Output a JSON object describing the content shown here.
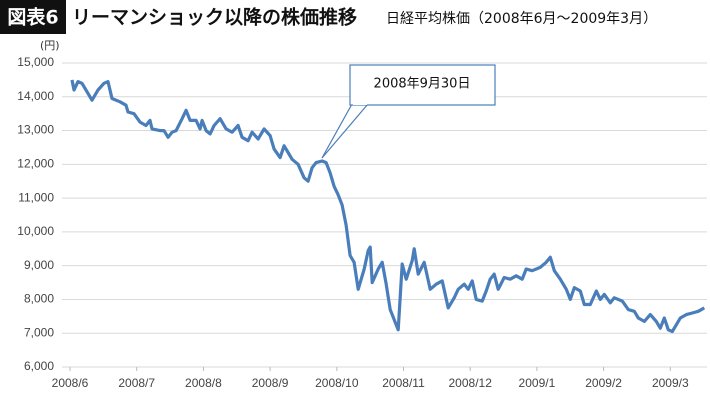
{
  "chart_data": {
    "type": "line",
    "badge": "図表6",
    "title": "リーマンショック以降の株価推移",
    "subtitle": "日経平均株価（2008年6月～2009年3月）",
    "y_unit": "(円)",
    "annotation": "2008年9月30日",
    "xlim": [
      0,
      9.55
    ],
    "xticks": [
      {
        "value": 0,
        "label": "2008/6"
      },
      {
        "value": 1,
        "label": "2008/7"
      },
      {
        "value": 2,
        "label": "2008/8"
      },
      {
        "value": 3,
        "label": "2008/9"
      },
      {
        "value": 4,
        "label": "2008/10"
      },
      {
        "value": 5,
        "label": "2008/11"
      },
      {
        "value": 6,
        "label": "2008/12"
      },
      {
        "value": 7,
        "label": "2009/1"
      },
      {
        "value": 8,
        "label": "2009/2"
      },
      {
        "value": 9,
        "label": "2009/3"
      }
    ],
    "ylim": [
      6000,
      15000
    ],
    "yticks": [
      {
        "value": 6000,
        "label": "6,000"
      },
      {
        "value": 7000,
        "label": "7,000"
      },
      {
        "value": 8000,
        "label": "8,000"
      },
      {
        "value": 9000,
        "label": "9,000"
      },
      {
        "value": 10000,
        "label": "10,000"
      },
      {
        "value": 11000,
        "label": "11,000"
      },
      {
        "value": 12000,
        "label": "12,000"
      },
      {
        "value": 13000,
        "label": "13,000"
      },
      {
        "value": 14000,
        "label": "14,000"
      },
      {
        "value": 15000,
        "label": "15,000"
      }
    ],
    "grid": true,
    "color": "#4a7ebb",
    "x": [
      0.03,
      0.06,
      0.12,
      0.18,
      0.27,
      0.33,
      0.42,
      0.51,
      0.57,
      0.63,
      0.75,
      0.84,
      0.87,
      0.96,
      1.05,
      1.14,
      1.2,
      1.23,
      1.35,
      1.41,
      1.47,
      1.53,
      1.59,
      1.68,
      1.74,
      1.8,
      1.89,
      1.95,
      1.98,
      2.04,
      2.1,
      2.16,
      2.25,
      2.34,
      2.43,
      2.52,
      2.58,
      2.67,
      2.73,
      2.82,
      2.91,
      3.0,
      3.06,
      3.15,
      3.21,
      3.27,
      3.33,
      3.42,
      3.51,
      3.57,
      3.63,
      3.69,
      3.78,
      3.84,
      3.9,
      3.96,
      4.02,
      4.08,
      4.14,
      4.2,
      4.26,
      4.32,
      4.41,
      4.47,
      4.5,
      4.53,
      4.62,
      4.68,
      4.74,
      4.8,
      4.89,
      4.92,
      4.98,
      5.04,
      5.13,
      5.16,
      5.22,
      5.31,
      5.4,
      5.49,
      5.58,
      5.67,
      5.76,
      5.82,
      5.91,
      5.97,
      6.03,
      6.09,
      6.18,
      6.24,
      6.3,
      6.36,
      6.42,
      6.51,
      6.6,
      6.69,
      6.78,
      6.84,
      6.93,
      7.05,
      7.14,
      7.2,
      7.26,
      7.35,
      7.44,
      7.5,
      7.56,
      7.65,
      7.71,
      7.8,
      7.89,
      7.95,
      8.01,
      8.1,
      8.16,
      8.28,
      8.37,
      8.46,
      8.52,
      8.61,
      8.7,
      8.79,
      8.85,
      8.91,
      8.97,
      9.03,
      9.09,
      9.15,
      9.24,
      9.33,
      9.42,
      9.51
    ],
    "values": [
      14500,
      14200,
      14450,
      14400,
      14100,
      13900,
      14200,
      14400,
      14450,
      13950,
      13850,
      13750,
      13550,
      13500,
      13250,
      13150,
      13300,
      13050,
      13000,
      13000,
      12800,
      12950,
      13000,
      13350,
      13600,
      13300,
      13300,
      13050,
      13300,
      13000,
      12900,
      13150,
      13350,
      13050,
      12950,
      13150,
      12800,
      12700,
      12950,
      12750,
      13050,
      12850,
      12450,
      12200,
      12550,
      12350,
      12150,
      12000,
      11600,
      11500,
      11900,
      12050,
      12100,
      12050,
      11750,
      11350,
      11100,
      10800,
      10200,
      9300,
      9100,
      8300,
      8900,
      9450,
      9550,
      8500,
      8900,
      9100,
      8450,
      7700,
      7250,
      7100,
      9050,
      8600,
      9150,
      9500,
      8750,
      9100,
      8300,
      8450,
      8550,
      7750,
      8050,
      8300,
      8450,
      8300,
      8550,
      8000,
      7950,
      8250,
      8600,
      8750,
      8300,
      8650,
      8600,
      8700,
      8600,
      8900,
      8850,
      8950,
      9100,
      9250,
      8850,
      8600,
      8300,
      8000,
      8350,
      8250,
      7850,
      7850,
      8250,
      8000,
      8150,
      7900,
      8050,
      7950,
      7700,
      7650,
      7450,
      7350,
      7550,
      7350,
      7150,
      7450,
      7100,
      7050,
      7250,
      7450,
      7550,
      7600,
      7650,
      7750
    ]
  }
}
